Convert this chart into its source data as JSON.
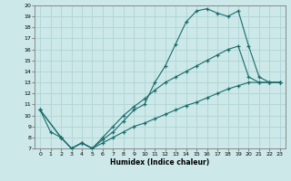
{
  "xlabel": "Humidex (Indice chaleur)",
  "xlim": [
    -0.5,
    23.5
  ],
  "ylim": [
    7,
    20
  ],
  "bg_color": "#cce8e8",
  "grid_color": "#b0d4d4",
  "line_color": "#1a6b6b",
  "line1_x": [
    0,
    1,
    2,
    3,
    4,
    5,
    6,
    7,
    8,
    9,
    10,
    11,
    12,
    13,
    14,
    15,
    16,
    17,
    18,
    19,
    20,
    21,
    22,
    23
  ],
  "line1_y": [
    10.5,
    8.5,
    8.0,
    7.0,
    7.5,
    7.0,
    7.8,
    8.5,
    9.5,
    10.5,
    11.0,
    13.0,
    14.5,
    16.5,
    18.5,
    19.5,
    19.7,
    19.3,
    19.0,
    19.5,
    16.3,
    13.5,
    13.0,
    13.0
  ],
  "line2_x": [
    0,
    2,
    3,
    4,
    5,
    6,
    7,
    8,
    9,
    10,
    11,
    12,
    13,
    14,
    15,
    16,
    17,
    18,
    19,
    20,
    21,
    22,
    23
  ],
  "line2_y": [
    10.5,
    8.0,
    7.0,
    7.5,
    7.0,
    8.0,
    9.0,
    10.0,
    10.8,
    11.5,
    12.3,
    13.0,
    13.5,
    14.0,
    14.5,
    15.0,
    15.5,
    16.0,
    16.3,
    13.5,
    13.0,
    13.0,
    13.0
  ],
  "line3_x": [
    0,
    2,
    3,
    4,
    5,
    6,
    7,
    8,
    9,
    10,
    11,
    12,
    13,
    14,
    15,
    16,
    17,
    18,
    19,
    20,
    21,
    22,
    23
  ],
  "line3_y": [
    10.5,
    8.0,
    7.0,
    7.5,
    7.0,
    7.5,
    8.0,
    8.5,
    9.0,
    9.3,
    9.7,
    10.1,
    10.5,
    10.9,
    11.2,
    11.6,
    12.0,
    12.4,
    12.7,
    13.0,
    13.0,
    13.0,
    13.0
  ]
}
